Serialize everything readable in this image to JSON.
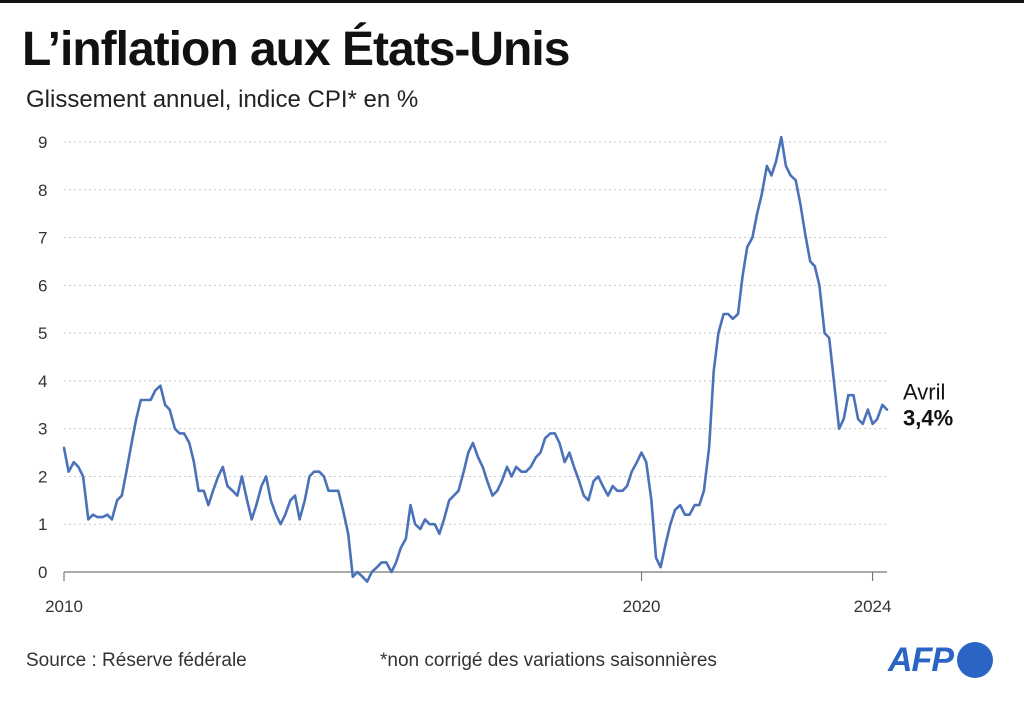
{
  "header": {
    "title": "L’inflation aux États-Unis",
    "subtitle": "Glissement annuel, indice CPI* en %"
  },
  "footer": {
    "source": "Source : Réserve fédérale",
    "note": "*non corrigé des variations saisonnières",
    "logo": "AFP"
  },
  "colors": {
    "line": "#4a72b8",
    "grid": "#c8c8c8",
    "brand": "#2a64c5"
  },
  "annotation": {
    "label": "Avril",
    "value": "3,4%"
  },
  "chart_data": {
    "type": "line",
    "title": "L’inflation aux États-Unis",
    "subtitle": "Glissement annuel, indice CPI* en %",
    "xlabel": "",
    "ylabel": "",
    "xlim": [
      2010.0,
      2024.25
    ],
    "ylim": [
      0,
      9
    ],
    "grid": true,
    "yticks": [
      0,
      1,
      2,
      3,
      4,
      5,
      6,
      7,
      8,
      9
    ],
    "xticks": [
      {
        "value": 2010,
        "label": "2010"
      },
      {
        "value": 2020,
        "label": "2020"
      },
      {
        "value": 2024,
        "label": "2024"
      }
    ],
    "series": [
      {
        "name": "CPI glissement annuel (%)",
        "points": [
          [
            2010.0,
            2.6
          ],
          [
            2010.08,
            2.1
          ],
          [
            2010.17,
            2.3
          ],
          [
            2010.25,
            2.2
          ],
          [
            2010.33,
            2.0
          ],
          [
            2010.42,
            1.1
          ],
          [
            2010.5,
            1.2
          ],
          [
            2010.58,
            1.15
          ],
          [
            2010.67,
            1.15
          ],
          [
            2010.75,
            1.2
          ],
          [
            2010.83,
            1.1
          ],
          [
            2010.92,
            1.5
          ],
          [
            2011.0,
            1.6
          ],
          [
            2011.08,
            2.1
          ],
          [
            2011.17,
            2.7
          ],
          [
            2011.25,
            3.2
          ],
          [
            2011.33,
            3.6
          ],
          [
            2011.42,
            3.6
          ],
          [
            2011.5,
            3.6
          ],
          [
            2011.58,
            3.8
          ],
          [
            2011.67,
            3.9
          ],
          [
            2011.75,
            3.5
          ],
          [
            2011.83,
            3.4
          ],
          [
            2011.92,
            3.0
          ],
          [
            2012.0,
            2.9
          ],
          [
            2012.08,
            2.9
          ],
          [
            2012.17,
            2.7
          ],
          [
            2012.25,
            2.3
          ],
          [
            2012.33,
            1.7
          ],
          [
            2012.42,
            1.7
          ],
          [
            2012.5,
            1.4
          ],
          [
            2012.58,
            1.7
          ],
          [
            2012.67,
            2.0
          ],
          [
            2012.75,
            2.2
          ],
          [
            2012.83,
            1.8
          ],
          [
            2012.92,
            1.7
          ],
          [
            2013.0,
            1.6
          ],
          [
            2013.08,
            2.0
          ],
          [
            2013.17,
            1.5
          ],
          [
            2013.25,
            1.1
          ],
          [
            2013.33,
            1.4
          ],
          [
            2013.42,
            1.8
          ],
          [
            2013.5,
            2.0
          ],
          [
            2013.58,
            1.5
          ],
          [
            2013.67,
            1.2
          ],
          [
            2013.75,
            1.0
          ],
          [
            2013.83,
            1.2
          ],
          [
            2013.92,
            1.5
          ],
          [
            2014.0,
            1.6
          ],
          [
            2014.08,
            1.1
          ],
          [
            2014.17,
            1.5
          ],
          [
            2014.25,
            2.0
          ],
          [
            2014.33,
            2.1
          ],
          [
            2014.42,
            2.1
          ],
          [
            2014.5,
            2.0
          ],
          [
            2014.58,
            1.7
          ],
          [
            2014.67,
            1.7
          ],
          [
            2014.75,
            1.7
          ],
          [
            2014.83,
            1.3
          ],
          [
            2014.92,
            0.8
          ],
          [
            2015.0,
            -0.1
          ],
          [
            2015.08,
            0.0
          ],
          [
            2015.17,
            -0.1
          ],
          [
            2015.25,
            -0.2
          ],
          [
            2015.33,
            0.0
          ],
          [
            2015.42,
            0.1
          ],
          [
            2015.5,
            0.2
          ],
          [
            2015.58,
            0.2
          ],
          [
            2015.67,
            0.0
          ],
          [
            2015.75,
            0.2
          ],
          [
            2015.83,
            0.5
          ],
          [
            2015.92,
            0.7
          ],
          [
            2016.0,
            1.4
          ],
          [
            2016.08,
            1.0
          ],
          [
            2016.17,
            0.9
          ],
          [
            2016.25,
            1.1
          ],
          [
            2016.33,
            1.0
          ],
          [
            2016.42,
            1.0
          ],
          [
            2016.5,
            0.8
          ],
          [
            2016.58,
            1.1
          ],
          [
            2016.67,
            1.5
          ],
          [
            2016.75,
            1.6
          ],
          [
            2016.83,
            1.7
          ],
          [
            2016.92,
            2.1
          ],
          [
            2017.0,
            2.5
          ],
          [
            2017.08,
            2.7
          ],
          [
            2017.17,
            2.4
          ],
          [
            2017.25,
            2.2
          ],
          [
            2017.33,
            1.9
          ],
          [
            2017.42,
            1.6
          ],
          [
            2017.5,
            1.7
          ],
          [
            2017.58,
            1.9
          ],
          [
            2017.67,
            2.2
          ],
          [
            2017.75,
            2.0
          ],
          [
            2017.83,
            2.2
          ],
          [
            2017.92,
            2.1
          ],
          [
            2018.0,
            2.1
          ],
          [
            2018.08,
            2.2
          ],
          [
            2018.17,
            2.4
          ],
          [
            2018.25,
            2.5
          ],
          [
            2018.33,
            2.8
          ],
          [
            2018.42,
            2.9
          ],
          [
            2018.5,
            2.9
          ],
          [
            2018.58,
            2.7
          ],
          [
            2018.67,
            2.3
          ],
          [
            2018.75,
            2.5
          ],
          [
            2018.83,
            2.2
          ],
          [
            2018.92,
            1.9
          ],
          [
            2019.0,
            1.6
          ],
          [
            2019.08,
            1.5
          ],
          [
            2019.17,
            1.9
          ],
          [
            2019.25,
            2.0
          ],
          [
            2019.33,
            1.8
          ],
          [
            2019.42,
            1.6
          ],
          [
            2019.5,
            1.8
          ],
          [
            2019.58,
            1.7
          ],
          [
            2019.67,
            1.7
          ],
          [
            2019.75,
            1.8
          ],
          [
            2019.83,
            2.1
          ],
          [
            2019.92,
            2.3
          ],
          [
            2020.0,
            2.5
          ],
          [
            2020.08,
            2.3
          ],
          [
            2020.17,
            1.5
          ],
          [
            2020.25,
            0.3
          ],
          [
            2020.33,
            0.1
          ],
          [
            2020.42,
            0.6
          ],
          [
            2020.5,
            1.0
          ],
          [
            2020.58,
            1.3
          ],
          [
            2020.67,
            1.4
          ],
          [
            2020.75,
            1.2
          ],
          [
            2020.83,
            1.2
          ],
          [
            2020.92,
            1.4
          ],
          [
            2021.0,
            1.4
          ],
          [
            2021.08,
            1.7
          ],
          [
            2021.17,
            2.6
          ],
          [
            2021.25,
            4.2
          ],
          [
            2021.33,
            5.0
          ],
          [
            2021.42,
            5.4
          ],
          [
            2021.5,
            5.4
          ],
          [
            2021.58,
            5.3
          ],
          [
            2021.67,
            5.4
          ],
          [
            2021.75,
            6.2
          ],
          [
            2021.83,
            6.8
          ],
          [
            2021.92,
            7.0
          ],
          [
            2022.0,
            7.5
          ],
          [
            2022.08,
            7.9
          ],
          [
            2022.17,
            8.5
          ],
          [
            2022.25,
            8.3
          ],
          [
            2022.33,
            8.6
          ],
          [
            2022.42,
            9.1
          ],
          [
            2022.5,
            8.5
          ],
          [
            2022.58,
            8.3
          ],
          [
            2022.67,
            8.2
          ],
          [
            2022.75,
            7.7
          ],
          [
            2022.83,
            7.1
          ],
          [
            2022.92,
            6.5
          ],
          [
            2023.0,
            6.4
          ],
          [
            2023.08,
            6.0
          ],
          [
            2023.17,
            5.0
          ],
          [
            2023.25,
            4.9
          ],
          [
            2023.33,
            4.0
          ],
          [
            2023.42,
            3.0
          ],
          [
            2023.5,
            3.2
          ],
          [
            2023.58,
            3.7
          ],
          [
            2023.67,
            3.7
          ],
          [
            2023.75,
            3.2
          ],
          [
            2023.83,
            3.1
          ],
          [
            2023.92,
            3.4
          ],
          [
            2024.0,
            3.1
          ],
          [
            2024.08,
            3.2
          ],
          [
            2024.17,
            3.5
          ],
          [
            2024.25,
            3.4
          ]
        ]
      }
    ]
  }
}
